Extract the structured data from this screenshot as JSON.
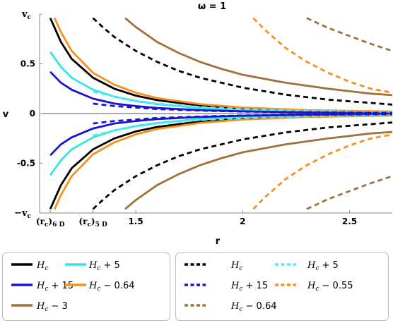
{
  "chart_data": {
    "type": "line",
    "title": "ω = 1",
    "xlabel": "r",
    "ylabel": "v",
    "xlim": [
      1.05,
      2.7
    ],
    "ylim": [
      -1,
      1
    ],
    "x_ticks": [
      {
        "value": 1.5,
        "label": "1.5"
      },
      {
        "value": 2.0,
        "label": "2"
      },
      {
        "value": 2.5,
        "label": "2.5"
      }
    ],
    "x_ticks_special": [
      {
        "value": 1.1,
        "label": "(r_c)_6D",
        "main": "(r",
        "sub1": "c",
        "close": ")",
        "sub2": "6 D"
      },
      {
        "value": 1.3,
        "label": "(r_c)_5D",
        "main": "(r",
        "sub1": "c",
        "close": ")",
        "sub2": "5 D"
      }
    ],
    "y_ticks": [
      {
        "value": 0.5,
        "label": "0.5"
      },
      {
        "value": 0,
        "label": "0"
      },
      {
        "value": -0.5,
        "label": "-0.5"
      }
    ],
    "y_ticks_special": [
      {
        "value": 1,
        "label": "v_c",
        "main": "v",
        "sub": "c"
      },
      {
        "value": -1,
        "label": "-v_c",
        "main": "−v",
        "sub": "c"
      }
    ],
    "grid": false,
    "series": [
      {
        "name": "H_c (6D)",
        "color": "#000000",
        "style": "solid",
        "points": [
          [
            1.1,
            0.96
          ],
          [
            1.15,
            0.72
          ],
          [
            1.2,
            0.55
          ],
          [
            1.3,
            0.36
          ],
          [
            1.4,
            0.25
          ],
          [
            1.5,
            0.18
          ],
          [
            1.6,
            0.135
          ],
          [
            1.8,
            0.08
          ],
          [
            2.0,
            0.05
          ],
          [
            2.3,
            0.03
          ],
          [
            2.7,
            0.015
          ]
        ]
      },
      {
        "name": "H_c + 5 (6D)",
        "color": "#33e5e5",
        "style": "solid",
        "points": [
          [
            1.1,
            0.62
          ],
          [
            1.15,
            0.47
          ],
          [
            1.2,
            0.36
          ],
          [
            1.3,
            0.24
          ],
          [
            1.4,
            0.17
          ],
          [
            1.5,
            0.125
          ],
          [
            1.6,
            0.095
          ],
          [
            1.8,
            0.055
          ],
          [
            2.0,
            0.035
          ],
          [
            2.3,
            0.02
          ],
          [
            2.7,
            0.012
          ]
        ]
      },
      {
        "name": "H_c + 15 (6D)",
        "color": "#1a14d0",
        "style": "solid",
        "points": [
          [
            1.1,
            0.42
          ],
          [
            1.15,
            0.31
          ],
          [
            1.2,
            0.24
          ],
          [
            1.3,
            0.15
          ],
          [
            1.4,
            0.1
          ],
          [
            1.5,
            0.075
          ],
          [
            1.6,
            0.055
          ],
          [
            1.8,
            0.035
          ],
          [
            2.0,
            0.022
          ],
          [
            2.3,
            0.013
          ],
          [
            2.7,
            0.008
          ]
        ]
      },
      {
        "name": "H_c − 0.64 (6D)",
        "color": "#f7901e",
        "style": "solid",
        "points": [
          [
            1.12,
            0.96
          ],
          [
            1.15,
            0.82
          ],
          [
            1.2,
            0.63
          ],
          [
            1.3,
            0.41
          ],
          [
            1.4,
            0.29
          ],
          [
            1.5,
            0.21
          ],
          [
            1.6,
            0.155
          ],
          [
            1.8,
            0.095
          ],
          [
            2.0,
            0.06
          ],
          [
            2.3,
            0.035
          ],
          [
            2.7,
            0.02
          ]
        ]
      },
      {
        "name": "H_c − 3 (6D)",
        "color": "#a0723a",
        "style": "solid",
        "points": [
          [
            1.45,
            0.96
          ],
          [
            1.5,
            0.87
          ],
          [
            1.6,
            0.72
          ],
          [
            1.7,
            0.61
          ],
          [
            1.8,
            0.52
          ],
          [
            1.9,
            0.45
          ],
          [
            2.0,
            0.39
          ],
          [
            2.2,
            0.31
          ],
          [
            2.4,
            0.25
          ],
          [
            2.6,
            0.2
          ],
          [
            2.7,
            0.185
          ]
        ]
      },
      {
        "name": "H_c (5D)",
        "color": "#000000",
        "style": "dashed",
        "points": [
          [
            1.3,
            0.96
          ],
          [
            1.35,
            0.86
          ],
          [
            1.4,
            0.77
          ],
          [
            1.5,
            0.63
          ],
          [
            1.6,
            0.52
          ],
          [
            1.7,
            0.43
          ],
          [
            1.8,
            0.36
          ],
          [
            2.0,
            0.26
          ],
          [
            2.2,
            0.19
          ],
          [
            2.4,
            0.14
          ],
          [
            2.7,
            0.09
          ]
        ]
      },
      {
        "name": "H_c + 5 (5D)",
        "color": "#5ee8ec",
        "style": "dashed",
        "points": [
          [
            1.3,
            0.22
          ],
          [
            1.4,
            0.17
          ],
          [
            1.5,
            0.13
          ],
          [
            1.6,
            0.1
          ],
          [
            1.8,
            0.065
          ],
          [
            2.0,
            0.045
          ],
          [
            2.3,
            0.028
          ],
          [
            2.7,
            0.015
          ]
        ]
      },
      {
        "name": "H_c + 15 (5D)",
        "color": "#1a14d0",
        "style": "dashed",
        "points": [
          [
            1.3,
            0.1
          ],
          [
            1.4,
            0.075
          ],
          [
            1.5,
            0.06
          ],
          [
            1.6,
            0.045
          ],
          [
            1.8,
            0.03
          ],
          [
            2.0,
            0.02
          ],
          [
            2.3,
            0.012
          ],
          [
            2.7,
            0.007
          ]
        ]
      },
      {
        "name": "H_c − 0.55 (5D)",
        "color": "#f7901e",
        "style": "dashed",
        "points": [
          [
            2.05,
            0.96
          ],
          [
            2.1,
            0.85
          ],
          [
            2.2,
            0.66
          ],
          [
            2.3,
            0.52
          ],
          [
            2.4,
            0.41
          ],
          [
            2.5,
            0.32
          ],
          [
            2.6,
            0.25
          ],
          [
            2.7,
            0.21
          ]
        ]
      },
      {
        "name": "H_c − 0.64 (5D)",
        "color": "#a0723a",
        "style": "dashed",
        "points": [
          [
            2.3,
            0.96
          ],
          [
            2.4,
            0.86
          ],
          [
            2.5,
            0.78
          ],
          [
            2.6,
            0.7
          ],
          [
            2.7,
            0.63
          ]
        ]
      }
    ],
    "symmetric_about_zero": true,
    "legend_placement": "bottom",
    "legend_left": [
      {
        "main": "H",
        "sub": "c",
        "suffix": "",
        "color": "#000000",
        "style": "solid"
      },
      {
        "main": "H",
        "sub": "c",
        "suffix": " + 5",
        "color": "#33e5e5",
        "style": "solid"
      },
      {
        "main": "H",
        "sub": "c",
        "suffix": " + 15",
        "color": "#1a14d0",
        "style": "solid"
      },
      {
        "main": "H",
        "sub": "c",
        "suffix": " − 0.64",
        "color": "#f7901e",
        "style": "solid"
      },
      {
        "main": "H",
        "sub": "c",
        "suffix": " − 3",
        "color": "#a0723a",
        "style": "solid"
      }
    ],
    "legend_right": [
      {
        "main": "H",
        "sub": "c",
        "suffix": "",
        "color": "#000000",
        "style": "dashed"
      },
      {
        "main": "H",
        "sub": "c",
        "suffix": " + 5",
        "color": "#5ee8ec",
        "style": "dashed"
      },
      {
        "main": "H",
        "sub": "c",
        "suffix": " + 15",
        "color": "#1a14d0",
        "style": "dashed"
      },
      {
        "main": "H",
        "sub": "c",
        "suffix": " − 0.55",
        "color": "#f7901e",
        "style": "dashed"
      },
      {
        "main": "H",
        "sub": "c",
        "suffix": " − 0.64",
        "color": "#a0723a",
        "style": "dashed"
      }
    ]
  }
}
